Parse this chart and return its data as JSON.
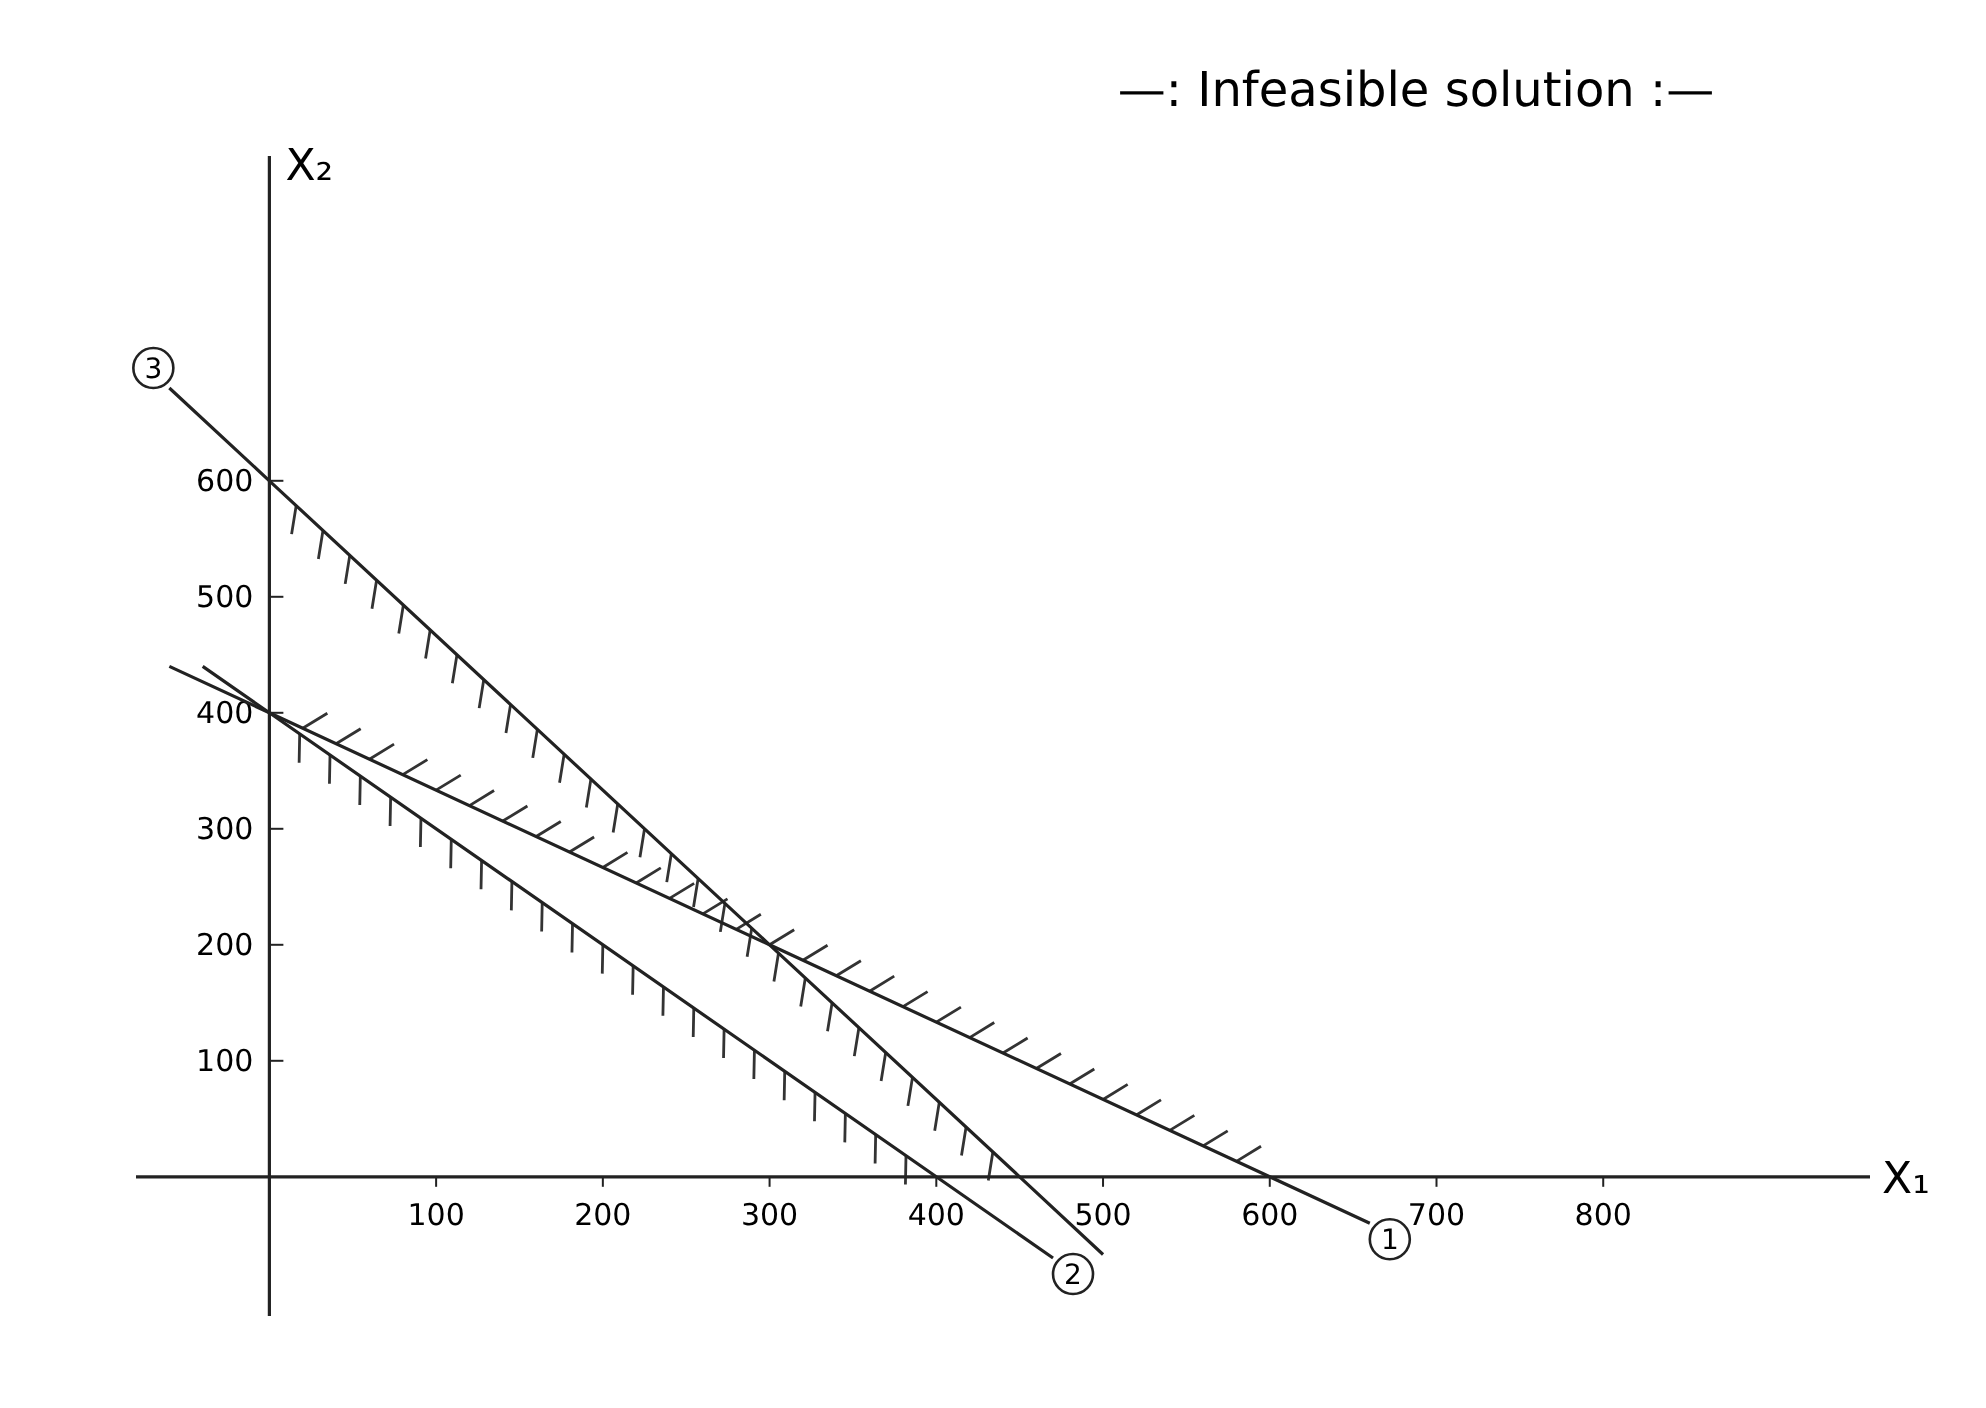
{
  "chart_data": {
    "type": "line",
    "title": "—: Infeasible solution :—",
    "xlabel": "X₁",
    "ylabel": "X₂",
    "xlim": [
      -80,
      960
    ],
    "ylim": [
      -120,
      880
    ],
    "xticks": [
      100,
      200,
      300,
      400,
      500,
      600,
      700,
      800
    ],
    "yticks": [
      100,
      200,
      300,
      400,
      500,
      600
    ],
    "grid": false,
    "marker": "none",
    "line_style": "solid",
    "series": [
      {
        "name": "1",
        "color": "#222222",
        "x": [
          -60,
          0,
          300,
          600,
          660
        ],
        "values": [
          440,
          400,
          200,
          0,
          -40
        ]
      },
      {
        "name": "2",
        "color": "#222222",
        "x": [
          -40,
          0,
          400,
          470
        ],
        "values": [
          440,
          400,
          0,
          -70
        ]
      },
      {
        "name": "3",
        "color": "#222222",
        "x": [
          -60,
          0,
          300,
          450,
          500
        ],
        "values": [
          680,
          600,
          200,
          0,
          -67
        ]
      }
    ]
  }
}
